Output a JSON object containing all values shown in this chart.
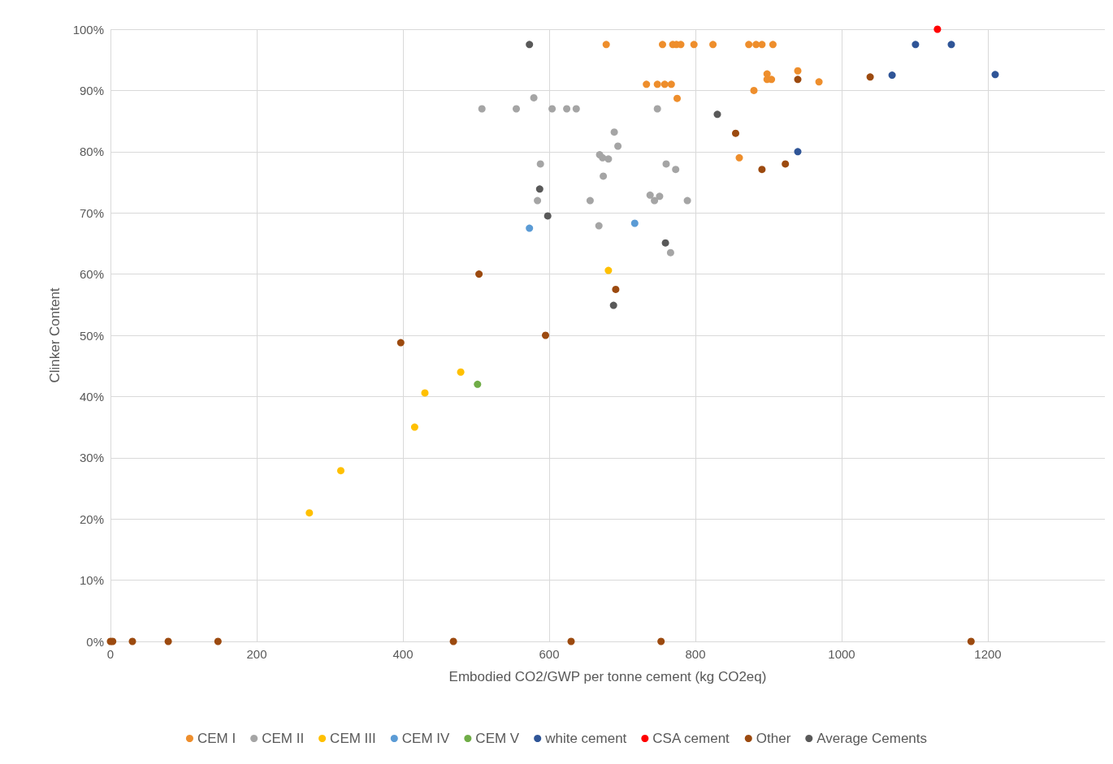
{
  "chart_data": {
    "type": "scatter",
    "xlabel": "Embodied CO2/GWP per tonne cement (kg CO2eq)",
    "ylabel": "Clinker Content",
    "xlim": [
      0,
      1360
    ],
    "ylim": [
      0,
      100
    ],
    "xticks": [
      0,
      200,
      400,
      600,
      800,
      1000,
      1200
    ],
    "yticks": [
      {
        "value": 0,
        "label": "0%"
      },
      {
        "value": 10,
        "label": "10%"
      },
      {
        "value": 20,
        "label": "20%"
      },
      {
        "value": 30,
        "label": "30%"
      },
      {
        "value": 40,
        "label": "40%"
      },
      {
        "value": 50,
        "label": "50%"
      },
      {
        "value": 60,
        "label": "60%"
      },
      {
        "value": 70,
        "label": "70%"
      },
      {
        "value": 80,
        "label": "80%"
      },
      {
        "value": 90,
        "label": "90%"
      },
      {
        "value": 100,
        "label": "100%"
      }
    ],
    "grid": true,
    "legend": "bottom",
    "marker": "circle",
    "series": [
      {
        "name": "CEM I",
        "color": "#ee8e2c",
        "x": [
          678,
          755,
          769,
          774,
          780,
          798,
          824,
          873,
          883,
          891,
          906,
          733,
          748,
          758,
          767,
          775,
          880,
          898,
          898,
          904,
          940,
          969,
          860
        ],
        "values": [
          97.5,
          97.5,
          97.5,
          97.5,
          97.5,
          97.5,
          97.5,
          97.5,
          97.5,
          97.5,
          97.5,
          91,
          91,
          91,
          91,
          88.7,
          90,
          92.7,
          91.8,
          91.8,
          93.2,
          91.4,
          79
        ]
      },
      {
        "name": "CEM II",
        "color": "#a5a5a5",
        "x": [
          508,
          555,
          579,
          604,
          624,
          637,
          748,
          689,
          694,
          669,
          673,
          681,
          674,
          588,
          760,
          773,
          584,
          656,
          738,
          744,
          751,
          789,
          668,
          766
        ],
        "values": [
          87,
          87,
          88.8,
          87,
          87,
          87,
          87,
          83.2,
          80.9,
          79.5,
          79,
          78.8,
          76,
          78,
          78,
          77.1,
          72,
          72,
          72.9,
          72,
          72.7,
          72,
          67.9,
          63.5
        ]
      },
      {
        "name": "CEM III",
        "color": "#ffc000",
        "x": [
          681,
          479,
          430,
          416,
          315,
          272
        ],
        "values": [
          60.6,
          44,
          40.6,
          35,
          27.9,
          21
        ]
      },
      {
        "name": "CEM IV",
        "color": "#5b9bd5",
        "x": [
          573,
          717
        ],
        "values": [
          67.5,
          68.3
        ]
      },
      {
        "name": "CEM V",
        "color": "#70ad47",
        "x": [
          502
        ],
        "values": [
          42
        ]
      },
      {
        "name": "white cement",
        "color": "#2f5597",
        "x": [
          1101,
          1150,
          1069,
          1210,
          940
        ],
        "values": [
          97.5,
          97.5,
          92.5,
          92.6,
          80
        ]
      },
      {
        "name": "CSA cement",
        "color": "#ff0000",
        "x": [
          1131
        ],
        "values": [
          100
        ]
      },
      {
        "name": "Other",
        "color": "#9c4a0f",
        "x": [
          940,
          1039,
          855,
          891,
          923,
          504,
          691,
          595,
          397,
          0,
          3,
          30,
          79,
          147,
          469,
          630,
          753,
          1177
        ],
        "values": [
          91.8,
          92.2,
          83,
          77.1,
          78,
          60,
          57.5,
          50,
          48.8,
          0,
          0,
          0,
          0,
          0,
          0,
          0,
          0,
          0
        ]
      },
      {
        "name": "Average Cements",
        "color": "#595959",
        "x": [
          573,
          830,
          587,
          598,
          759,
          688
        ],
        "values": [
          97.5,
          86.1,
          73.9,
          69.5,
          65.1,
          54.9
        ]
      }
    ]
  }
}
